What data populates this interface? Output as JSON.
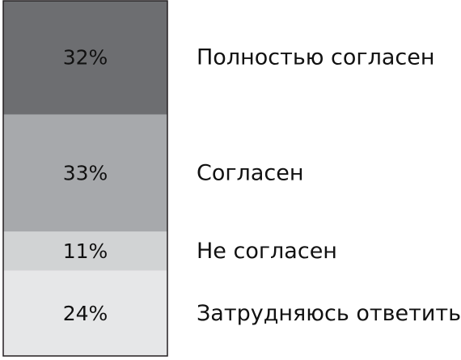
{
  "chart_data": {
    "type": "bar",
    "stacked": true,
    "orientation": "vertical-stack",
    "unit": "%",
    "categories": [
      "Полностью согласен",
      "Согласен",
      "Не согласен",
      "Затрудняюсь ответить"
    ],
    "values": [
      32,
      33,
      11,
      24
    ],
    "value_labels": [
      "32%",
      "33%",
      "11%",
      "24%"
    ],
    "colors": [
      "#6d6e71",
      "#a7a9ac",
      "#d1d3d4",
      "#e6e7e8"
    ],
    "legend_placement": "right",
    "grid": false
  }
}
